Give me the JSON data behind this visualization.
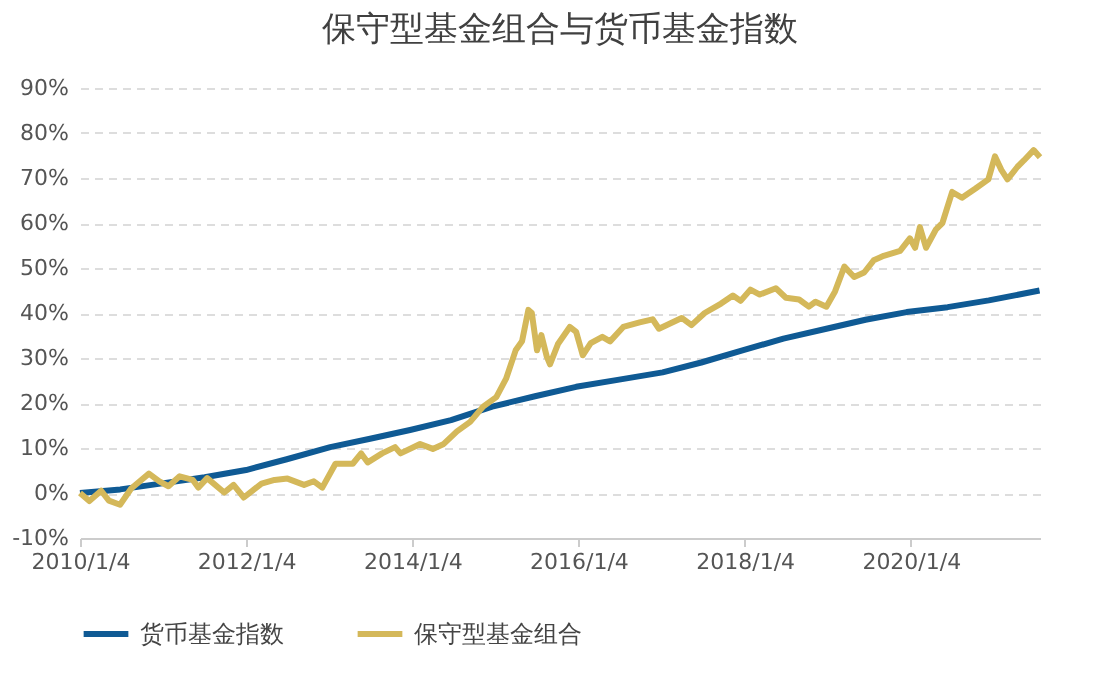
{
  "chart_data": {
    "type": "line",
    "title": "保守型基金组合与货币基金指数",
    "xlim": [
      "2010-01-04",
      "2021-07-25"
    ],
    "xticks": [
      {
        "value": "2010-01-04",
        "label": "2010/1/4"
      },
      {
        "value": "2012-01-04",
        "label": "2012/1/4"
      },
      {
        "value": "2014-01-04",
        "label": "2014/1/4"
      },
      {
        "value": "2016-01-04",
        "label": "2016/1/4"
      },
      {
        "value": "2018-01-04",
        "label": "2018/1/4"
      },
      {
        "value": "2020-01-04",
        "label": "2020/1/4"
      }
    ],
    "ylim": [
      -10,
      90
    ],
    "yticks": [
      {
        "value": -10,
        "label": "-10%"
      },
      {
        "value": 0,
        "label": "0%"
      },
      {
        "value": 10,
        "label": "10%"
      },
      {
        "value": 20,
        "label": "20%"
      },
      {
        "value": 30,
        "label": "30%"
      },
      {
        "value": 40,
        "label": "40%"
      },
      {
        "value": 50,
        "label": "50%"
      },
      {
        "value": 60,
        "label": "60%"
      },
      {
        "value": 70,
        "label": "70%"
      },
      {
        "value": 80,
        "label": "80%"
      },
      {
        "value": 90,
        "label": "90%"
      }
    ],
    "grid": "y",
    "legend": "bottom",
    "marker": "none",
    "line_style": "solid",
    "series": [
      {
        "name": "货币基金指数",
        "color": "#0f5a94",
        "x": [
          "2010-01-04",
          "2010-06-30",
          "2011-01-08",
          "2011-07-06",
          "2012-01-04",
          "2012-07-01",
          "2013-01-08",
          "2013-06-27",
          "2013-12-25",
          "2014-06-23",
          "2014-12-21",
          "2015-06-27",
          "2015-12-25",
          "2016-07-01",
          "2017-01-08",
          "2017-06-27",
          "2017-12-25",
          "2018-06-23",
          "2018-12-29",
          "2019-06-19",
          "2019-12-17",
          "2020-06-14",
          "2020-12-12",
          "2021-07-23"
        ],
        "values": [
          0,
          0.8,
          2.2,
          3.5,
          5.1,
          7.5,
          10.2,
          12,
          14,
          16.2,
          19.2,
          21.5,
          23.6,
          25.2,
          26.8,
          29,
          31.7,
          34.3,
          36.5,
          38.5,
          40.2,
          41.3,
          42.8,
          45
        ]
      },
      {
        "name": "保守型基金组合",
        "color": "#d4b85a",
        "x": [
          "2010-01-04",
          "2010-02-14",
          "2010-04-07",
          "2010-05-11",
          "2010-06-29",
          "2010-08-17",
          "2010-11-03",
          "2010-12-19",
          "2011-01-28",
          "2011-03-18",
          "2011-05-15",
          "2011-06-08",
          "2011-07-17",
          "2011-09-30",
          "2011-11-10",
          "2011-12-25",
          "2012-03-12",
          "2012-05-08",
          "2012-07-04",
          "2012-09-15",
          "2012-10-28",
          "2012-12-04",
          "2013-01-31",
          "2013-04-17",
          "2013-05-24",
          "2013-06-22",
          "2013-08-24",
          "2013-10-20",
          "2013-11-13",
          "2014-02-07",
          "2014-04-04",
          "2014-05-22",
          "2014-07-19",
          "2014-09-15",
          "2014-11-11",
          "2015-01-08",
          "2015-02-20",
          "2015-04-03",
          "2015-05-01",
          "2015-05-29",
          "2015-06-13",
          "2015-07-06",
          "2015-07-25",
          "2015-08-18",
          "2015-09-01",
          "2015-10-06",
          "2015-11-27",
          "2015-12-25",
          "2016-01-23",
          "2016-02-27",
          "2016-04-18",
          "2016-05-22",
          "2016-07-19",
          "2016-09-29",
          "2016-11-25",
          "2016-12-23",
          "2017-04-02",
          "2017-05-15",
          "2017-07-12",
          "2017-09-22",
          "2017-11-13",
          "2017-12-17",
          "2018-01-29",
          "2018-03-11",
          "2018-05-21",
          "2018-07-04",
          "2018-08-31",
          "2018-10-13",
          "2018-11-11",
          "2018-12-29",
          "2019-02-05",
          "2019-03-18",
          "2019-04-30",
          "2019-06-13",
          "2019-07-25",
          "2019-09-07",
          "2019-11-18",
          "2019-12-31",
          "2020-01-23",
          "2020-02-13",
          "2020-03-11",
          "2020-04-24",
          "2020-05-22",
          "2020-07-04",
          "2020-08-16",
          "2020-10-13",
          "2020-12-10",
          "2021-01-08",
          "2021-02-05",
          "2021-03-04",
          "2021-04-17",
          "2021-05-15",
          "2021-06-27",
          "2021-07-25"
        ],
        "values": [
          0,
          -1.8,
          0.5,
          -1.7,
          -2.6,
          1,
          4.3,
          2.6,
          1.5,
          3.7,
          2.9,
          1.2,
          3.3,
          0.1,
          1.8,
          -1,
          2.1,
          2.9,
          3.2,
          1.8,
          2.6,
          1.2,
          6.5,
          6.5,
          8.8,
          6.8,
          8.8,
          10.2,
          8.8,
          10.9,
          9.8,
          10.9,
          13.7,
          15.8,
          19.2,
          21.3,
          25.4,
          31.7,
          33.7,
          40.7,
          40,
          31.7,
          35.1,
          30.3,
          28.6,
          33.1,
          36.9,
          35.8,
          30.6,
          33.3,
          34.7,
          33.7,
          36.9,
          37.9,
          38.6,
          36.5,
          38.9,
          37.3,
          40,
          42.1,
          43.9,
          42.7,
          45.2,
          44.1,
          45.5,
          43.4,
          43,
          41.4,
          42.5,
          41.4,
          44.8,
          50.3,
          48,
          49,
          51.7,
          52.7,
          53.8,
          56.6,
          54.5,
          59.1,
          54.5,
          58.6,
          60,
          66.9,
          65.6,
          67.6,
          69.7,
          74.8,
          71.8,
          69.7,
          72.5,
          73.9,
          76.2,
          74.6
        ]
      }
    ]
  }
}
